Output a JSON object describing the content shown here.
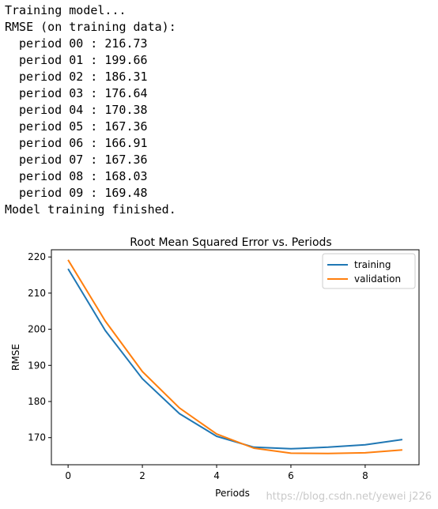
{
  "console": {
    "lines": [
      "Training model...",
      "RMSE (on training data):",
      "period 00 : 216.73",
      "period 01 : 199.66",
      "period 02 : 186.31",
      "period 03 : 176.64",
      "period 04 : 170.38",
      "period 05 : 167.36",
      "period 06 : 166.91",
      "period 07 : 167.36",
      "period 08 : 168.03",
      "period 09 : 169.48",
      "Model training finished."
    ]
  },
  "chart_data": {
    "type": "line",
    "title": "Root Mean Squared Error vs. Periods",
    "xlabel": "Periods",
    "ylabel": "RMSE",
    "x": [
      0,
      1,
      2,
      3,
      4,
      5,
      6,
      7,
      8,
      9
    ],
    "xticks": [
      0,
      2,
      4,
      6,
      8
    ],
    "yticks": [
      170,
      180,
      190,
      200,
      210,
      220
    ],
    "xlim": [
      -0.45,
      9.45
    ],
    "ylim": [
      162.5,
      222.0
    ],
    "grid": false,
    "legend_position": "top-right",
    "series": [
      {
        "name": "training",
        "color": "#1f77b4",
        "values": [
          216.73,
          199.66,
          186.31,
          176.64,
          170.38,
          167.36,
          166.91,
          167.36,
          168.03,
          169.48
        ]
      },
      {
        "name": "validation",
        "color": "#ff7f0e",
        "values": [
          219.2,
          202.3,
          188.3,
          178.2,
          171.0,
          167.1,
          165.7,
          165.6,
          165.8,
          166.6
        ]
      }
    ]
  },
  "watermark": "https://blog.csdn.net/yewei j226"
}
